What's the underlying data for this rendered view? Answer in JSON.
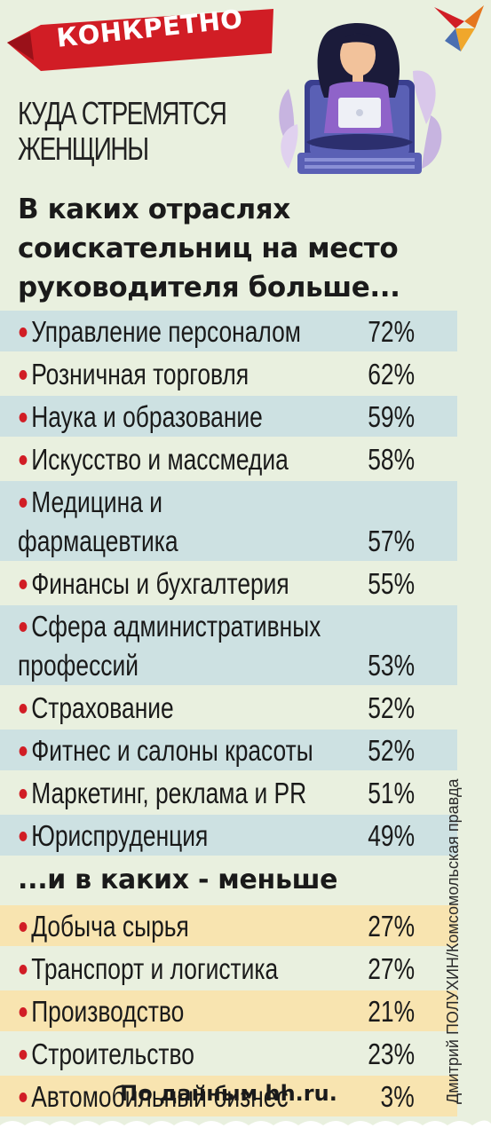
{
  "badge": "КОНКРЕТНО",
  "heading": [
    "КУДА СТРЕМЯТСЯ",
    "ЖЕНЩИНЫ"
  ],
  "question": "В каких отраслях соискательниц на место руководителя больше...",
  "more": [
    {
      "label": "Управление персоналом",
      "pct": "72%"
    },
    {
      "label": "Розничная торговля",
      "pct": "62%"
    },
    {
      "label": "Наука и образование",
      "pct": "59%"
    },
    {
      "label": "Искусство и массмедиа",
      "pct": "58%"
    },
    {
      "label": "Медицина и фармацевтика",
      "pct": "57%"
    },
    {
      "label": "Финансы и бухгалтерия",
      "pct": "55%"
    },
    {
      "label": "Сфера административных профессий",
      "pct": "53%"
    },
    {
      "label": "Страхование",
      "pct": "52%"
    },
    {
      "label": "Фитнес и салоны красоты",
      "pct": "52%"
    },
    {
      "label": "Маркетинг, реклама и PR",
      "pct": "51%"
    },
    {
      "label": "Юриспруденция",
      "pct": "49%"
    }
  ],
  "less_heading": "...и в каких - меньше",
  "less": [
    {
      "label": "Добыча сырья",
      "pct": "27%"
    },
    {
      "label": "Транспорт и логистика",
      "pct": "27%"
    },
    {
      "label": "Производство",
      "pct": "21%"
    },
    {
      "label": "Строительство",
      "pct": "23%"
    },
    {
      "label": "Автомобильный бизнес",
      "pct": "3%"
    }
  ],
  "source": "По данным hh.ru.",
  "credit": "Дмитрий ПОЛУХИН/Комсомольская правда",
  "colors": {
    "accent": "#d11d25",
    "band_blue": "#cde1e2",
    "band_yellow": "#f8e4b0",
    "background": "#e9f0df"
  },
  "icons": {
    "logo": "kp-bird-logo",
    "illustration": "woman-with-laptop-illustration"
  }
}
